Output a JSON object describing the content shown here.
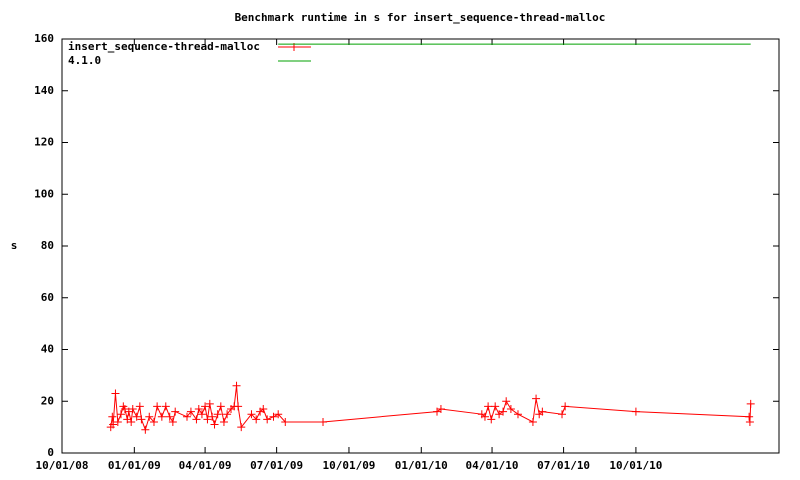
{
  "chart_data": {
    "type": "line",
    "title": "Benchmark runtime in s for insert_sequence-thread-malloc",
    "y_label": "s",
    "xlim": [
      "2008-10-01",
      "2011-04-01"
    ],
    "xticks": [
      {
        "value": "2008-10-01",
        "label": "10/01/08"
      },
      {
        "value": "2009-01-01",
        "label": "01/01/09"
      },
      {
        "value": "2009-04-01",
        "label": "04/01/09"
      },
      {
        "value": "2009-07-01",
        "label": "07/01/09"
      },
      {
        "value": "2009-10-01",
        "label": "10/01/09"
      },
      {
        "value": "2010-01-01",
        "label": "01/01/10"
      },
      {
        "value": "2010-04-01",
        "label": "04/01/10"
      },
      {
        "value": "2010-07-01",
        "label": "07/01/10"
      },
      {
        "value": "2010-10-01",
        "label": "10/01/10"
      }
    ],
    "ylim": [
      0,
      160
    ],
    "yticks": [
      0,
      20,
      40,
      60,
      80,
      100,
      120,
      140,
      160
    ],
    "legend": "top-left",
    "series": [
      {
        "name": "insert_sequence-thread-malloc",
        "color": "#ff0000",
        "markers": true,
        "x": [
          "2008-12-02",
          "2008-12-04",
          "2008-12-05",
          "2008-12-08",
          "2008-12-11",
          "2008-12-15",
          "2008-12-18",
          "2008-12-20",
          "2008-12-23",
          "2008-12-25",
          "2008-12-28",
          "2008-12-30",
          "2009-01-04",
          "2009-01-08",
          "2009-01-10",
          "2009-01-15",
          "2009-01-20",
          "2009-01-26",
          "2009-01-30",
          "2009-02-05",
          "2009-02-10",
          "2009-02-15",
          "2009-02-19",
          "2009-02-22",
          "2009-03-09",
          "2009-03-14",
          "2009-03-21",
          "2009-03-24",
          "2009-03-28",
          "2009-04-01",
          "2009-04-04",
          "2009-04-07",
          "2009-04-10",
          "2009-04-13",
          "2009-04-17",
          "2009-04-21",
          "2009-04-25",
          "2009-04-29",
          "2009-05-04",
          "2009-05-08",
          "2009-05-11",
          "2009-05-13",
          "2009-05-17",
          "2009-05-30",
          "2009-06-05",
          "2009-06-10",
          "2009-06-14",
          "2009-06-19",
          "2009-06-27",
          "2009-07-03",
          "2009-07-12",
          "2009-08-29",
          "2010-01-21",
          "2010-01-26",
          "2010-03-19",
          "2010-03-23",
          "2010-03-27",
          "2010-03-31",
          "2010-04-05",
          "2010-04-10",
          "2010-04-15",
          "2010-04-19",
          "2010-04-25",
          "2010-05-04",
          "2010-05-23",
          "2010-05-27",
          "2010-05-31",
          "2010-06-04",
          "2010-06-29",
          "2010-07-03",
          "2010-10-01",
          "2011-02-22",
          "2011-02-23",
          "2011-02-24"
        ],
        "values": [
          10,
          14,
          11,
          23,
          12,
          15,
          18,
          17,
          13,
          16,
          12,
          17,
          14,
          18,
          13,
          9,
          14,
          12,
          18,
          14,
          18,
          14,
          12,
          16,
          14,
          16,
          13,
          17,
          15,
          18,
          13,
          19,
          14,
          11,
          15,
          18,
          12,
          15,
          17,
          18,
          26,
          18,
          10,
          15,
          13,
          16,
          17,
          13,
          14,
          15,
          12,
          12,
          16,
          17,
          15,
          14,
          18,
          13,
          18,
          15,
          16,
          20,
          17,
          15,
          12,
          21,
          15,
          16,
          15,
          18,
          16,
          14,
          12,
          19
        ]
      },
      {
        "name": "4.1.0",
        "color": "#00a000",
        "markers": false,
        "x": [
          "2009-07-03",
          "2011-02-24"
        ],
        "values": [
          158,
          158
        ]
      }
    ]
  }
}
